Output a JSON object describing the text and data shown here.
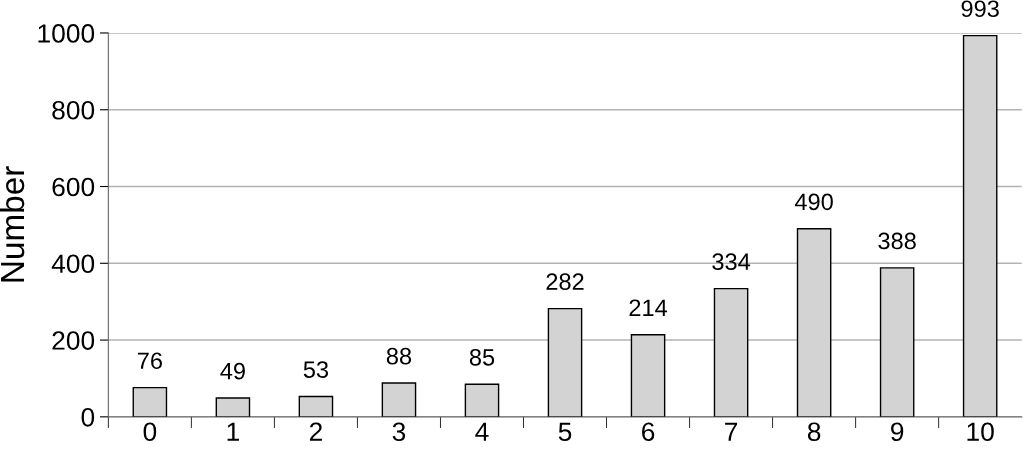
{
  "chart_data": {
    "type": "bar",
    "ylabel": "Number",
    "categories": [
      "0",
      "1",
      "2",
      "3",
      "4",
      "5",
      "6",
      "7",
      "8",
      "9",
      "10"
    ],
    "values": [
      76,
      49,
      53,
      88,
      85,
      282,
      214,
      334,
      490,
      388,
      993
    ],
    "color": "#d3d3d3",
    "ylim": [
      0,
      1000
    ],
    "yticks": [
      0,
      200,
      400,
      600,
      800,
      1000
    ],
    "grid": "y",
    "data_labels": true
  }
}
